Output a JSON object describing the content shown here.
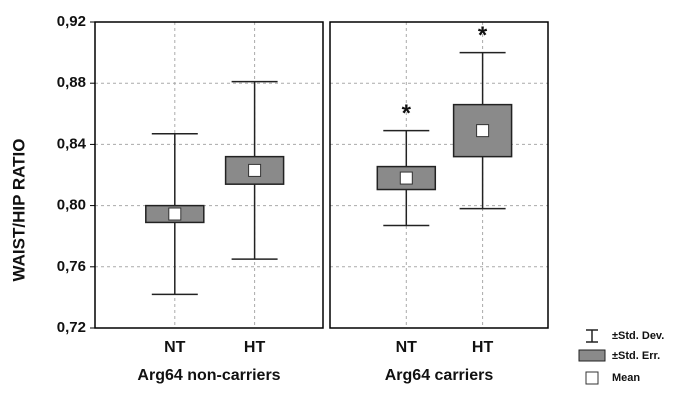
{
  "chart_data": {
    "type": "box",
    "y_label": "WAIST/HIP RATIO",
    "ylim": [
      0.72,
      0.92
    ],
    "yticks": [
      {
        "value": 0.72,
        "label": "0,72"
      },
      {
        "value": 0.76,
        "label": "0,76"
      },
      {
        "value": 0.8,
        "label": "0,80"
      },
      {
        "value": 0.84,
        "label": "0,84"
      },
      {
        "value": 0.88,
        "label": "0,88"
      },
      {
        "value": 0.92,
        "label": "0,92"
      }
    ],
    "grid": true,
    "box_color": "#8a8a8a",
    "legend": {
      "sd": "±Std. Dev.",
      "se": "±Std. Err.",
      "mean": "Mean"
    },
    "panels": [
      {
        "title": "Arg64 non-carriers",
        "categories": [
          "NT",
          "HT"
        ],
        "mean": [
          0.7945,
          0.823
        ],
        "se": [
          0.0055,
          0.009
        ],
        "sd": [
          0.0525,
          0.058
        ]
      },
      {
        "title": "Arg64 carriers",
        "categories": [
          "NT",
          "HT"
        ],
        "mean": [
          0.818,
          0.849
        ],
        "se": [
          0.0075,
          0.017
        ],
        "sd": [
          0.031,
          0.051
        ],
        "annotations": [
          "*",
          "*"
        ]
      }
    ]
  }
}
